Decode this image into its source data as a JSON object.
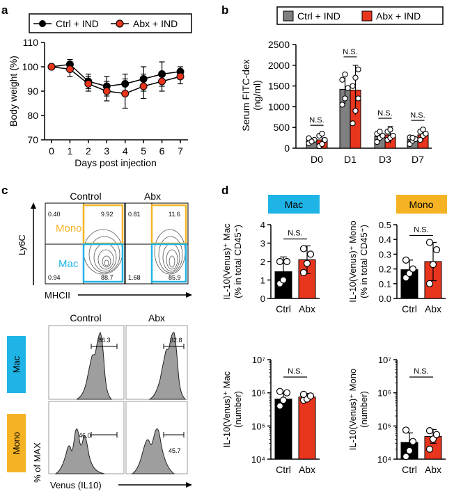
{
  "panels": {
    "a": "a",
    "b": "b",
    "c": "c",
    "d": "d"
  },
  "colors": {
    "ctrl": "#000000",
    "abx": "#e8351e",
    "ctrl_bar_b": "#7f7f7f",
    "mac": "#1fb4e6",
    "mono": "#f5b324",
    "hist_fill": "#9e9e9e"
  },
  "chart_data": [
    {
      "id": "a",
      "type": "line",
      "legend": [
        "Ctrl + IND",
        "Abx + IND"
      ],
      "xlabel": "Days post injection",
      "ylabel": "Body weight (%)",
      "x": [
        0,
        1,
        2,
        3,
        4,
        5,
        6,
        7
      ],
      "xticks": [
        "0",
        "1",
        "2",
        "3",
        "4",
        "5",
        "6",
        "7"
      ],
      "yticks": [
        "70",
        "80",
        "90",
        "100",
        "110"
      ],
      "ylim": [
        70,
        110
      ],
      "series": [
        {
          "name": "Ctrl + IND",
          "values": [
            100,
            101,
            94,
            92,
            93,
            95,
            97,
            98
          ],
          "err": [
            0,
            2,
            3,
            4,
            4,
            5,
            5,
            2
          ]
        },
        {
          "name": "Abx + IND",
          "values": [
            100,
            99,
            93,
            90,
            89,
            92,
            94,
            96
          ],
          "err": [
            0,
            3,
            3,
            4,
            6,
            5,
            4,
            3
          ]
        }
      ]
    },
    {
      "id": "b",
      "type": "bar",
      "legend": [
        "Ctrl + IND",
        "Abx + IND"
      ],
      "ylabel": "Serum FITC-dex (ng/ml)",
      "ylabel_lines": [
        "Serum FITC-dex",
        "(ng/ml)"
      ],
      "categories": [
        "D0",
        "D1",
        "D3",
        "D7"
      ],
      "yticks": [
        "0",
        "500",
        "1000",
        "1500",
        "2000",
        "2500"
      ],
      "ylim": [
        0,
        2500
      ],
      "annotations": [
        "N.S.",
        "N.S.",
        "N.S.",
        "N.S."
      ],
      "series": [
        {
          "name": "Ctrl + IND",
          "values": [
            180,
            1420,
            280,
            200
          ],
          "err": [
            60,
            350,
            120,
            80
          ],
          "points": [
            [
              120,
              180,
              200,
              240,
              160
            ],
            [
              1050,
              1200,
              1450,
              1650,
              1780
            ],
            [
              150,
              250,
              300,
              350,
              400
            ],
            [
              100,
              180,
              220,
              260,
              250
            ]
          ]
        },
        {
          "name": "Abx + IND",
          "values": [
            200,
            1400,
            320,
            320
          ],
          "err": [
            150,
            600,
            200,
            150
          ],
          "points": [
            [
              50,
              100,
              200,
              300,
              350
            ],
            [
              600,
              900,
              1200,
              1500,
              1700,
              1900
            ],
            [
              200,
              250,
              300,
              400,
              450
            ],
            [
              200,
              300,
              350,
              400,
              450
            ]
          ]
        }
      ]
    },
    {
      "id": "d1",
      "type": "bar",
      "title": "Mac",
      "ylabel_lines": [
        "IL-10(Venus)⁺ Mac",
        "(% in total CD45⁺)"
      ],
      "categories": [
        "Ctrl",
        "Abx"
      ],
      "ylim": [
        0,
        4
      ],
      "yticks": [
        "0",
        "1",
        "2",
        "3",
        "4"
      ],
      "values": [
        1.45,
        2.1
      ],
      "err": [
        0.8,
        0.75
      ],
      "points": [
        [
          0.8,
          1.0,
          2.0,
          2.0
        ],
        [
          1.4,
          1.9,
          2.4,
          2.7
        ]
      ],
      "annotation": "N.S."
    },
    {
      "id": "d2",
      "type": "bar",
      "title": "Mono",
      "ylabel_lines": [
        "IL-10(Venus)⁺ Mono",
        "(% in total CD45⁺)"
      ],
      "categories": [
        "Ctrl",
        "Abx"
      ],
      "ylim": [
        0,
        0.5
      ],
      "yticks": [
        "0.0",
        "0.1",
        "0.2",
        "0.3",
        "0.4",
        "0.5"
      ],
      "values": [
        0.195,
        0.25
      ],
      "err": [
        0.065,
        0.13
      ],
      "points": [
        [
          0.14,
          0.17,
          0.2,
          0.26
        ],
        [
          0.1,
          0.23,
          0.33,
          0.38
        ]
      ],
      "annotation": "N.S."
    },
    {
      "id": "d3",
      "type": "bar",
      "log": true,
      "ylabel_lines": [
        "IL-10(Venus)⁺ Mac",
        "(number)"
      ],
      "categories": [
        "Ctrl",
        "Abx"
      ],
      "ylim": [
        10000,
        10000000
      ],
      "yticks": [
        "10⁴",
        "10⁵",
        "10⁶",
        "10⁷"
      ],
      "values": [
        650000,
        750000
      ],
      "err_low": [
        420000,
        600000
      ],
      "err_high": [
        1000000,
        950000
      ],
      "points": [
        [
          400000,
          600000,
          1000000,
          1100000
        ],
        [
          600000,
          650000,
          800000,
          900000
        ]
      ],
      "annotation": "N.S."
    },
    {
      "id": "d4",
      "type": "bar",
      "log": true,
      "ylabel_lines": [
        "IL-10(Venus)⁺ Mono",
        "(number)"
      ],
      "categories": [
        "Ctrl",
        "Abx"
      ],
      "ylim": [
        10000,
        10000000
      ],
      "yticks": [
        "10⁴",
        "10⁵",
        "10⁶",
        "10⁷"
      ],
      "values": [
        32000,
        48000
      ],
      "err_low": [
        15000,
        30000
      ],
      "err_high": [
        62000,
        78000
      ],
      "points": [
        [
          12000,
          18000,
          34000,
          75000
        ],
        [
          20000,
          40000,
          55000,
          72000
        ]
      ],
      "annotation": "N.S."
    }
  ],
  "flow": {
    "col_labels": [
      "Control",
      "Abx"
    ],
    "y_axis": "Ly6C",
    "x_axis": "MHCII",
    "gate_mono": "Mono",
    "gate_mac": "Mac",
    "control": {
      "ul": "0.40",
      "ur": "9.92",
      "ll": "0.94",
      "lr": "88.7"
    },
    "abx": {
      "ul": "0.81",
      "ur": "11.6",
      "ll": "1.68",
      "lr": "85.9"
    }
  },
  "histograms": {
    "col_labels": [
      "Control",
      "Abx"
    ],
    "row_labels": [
      "Mac",
      "Mono"
    ],
    "ylabel": "% of MAX",
    "xlabel": "Venus (IL10)",
    "values": {
      "mac_control": "86.3",
      "mac_abx": "82.8",
      "mono_control": "46.0",
      "mono_abx": "45.7"
    }
  }
}
